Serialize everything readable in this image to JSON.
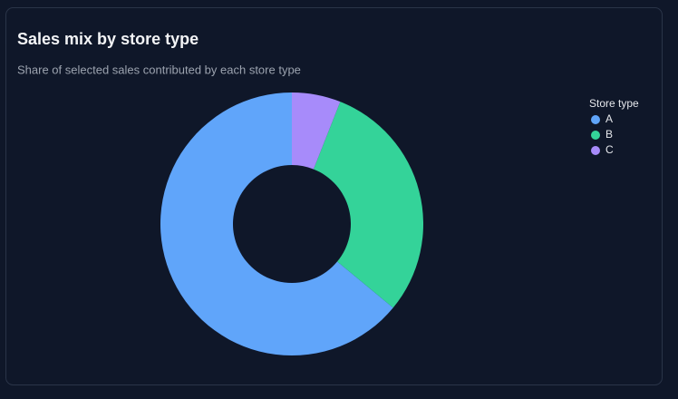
{
  "chart_data": {
    "type": "donut",
    "title": "Sales mix by store type",
    "subtitle": "Share of selected sales contributed by each store type",
    "legend_title": "Store type",
    "legend_position": "right",
    "categories": [
      "A",
      "B",
      "C"
    ],
    "values": [
      64,
      30,
      6
    ],
    "colors": [
      "#60a5fa",
      "#34d399",
      "#a78bfa"
    ],
    "direction": "counterclockwise"
  }
}
